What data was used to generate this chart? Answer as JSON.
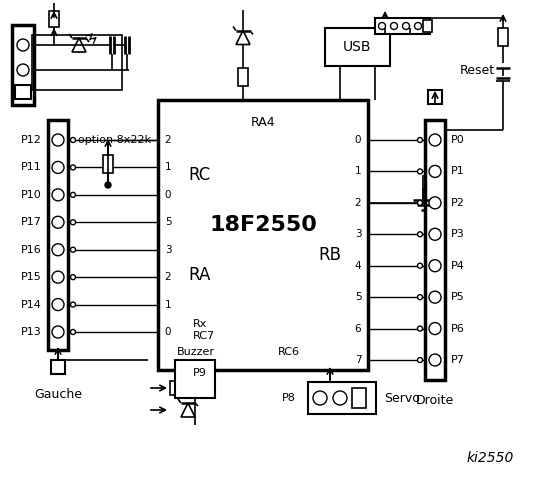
{
  "bg_color": "#ffffff",
  "lc": "#000000",
  "chip_label": "18F2550",
  "chip_ra4": "RA4",
  "rc_label": "RC",
  "ra_label": "RA",
  "rb_label": "RB",
  "rc6_label": "RC6",
  "rc7_label": "Rx\nRC7",
  "left_pins": [
    "P12",
    "P11",
    "P10",
    "P17",
    "P16",
    "P15",
    "P14",
    "P13"
  ],
  "left_pin_nums": [
    "2",
    "1",
    "0",
    "5",
    "3",
    "2",
    "1",
    "0"
  ],
  "right_pins": [
    "P0",
    "P1",
    "P2",
    "P3",
    "P4",
    "P5",
    "P6",
    "P7"
  ],
  "right_pin_nums": [
    "0",
    "1",
    "2",
    "3",
    "4",
    "5",
    "6",
    "7"
  ],
  "usb_label": "USB",
  "reset_label": "Reset",
  "gauche_label": "Gauche",
  "droite_label": "Droite",
  "buzzer_label": "Buzzer",
  "servo_label": "Servo",
  "p8_label": "P8",
  "p9_label": "P9",
  "option_label": "option 8x22k",
  "title": "ki2550"
}
